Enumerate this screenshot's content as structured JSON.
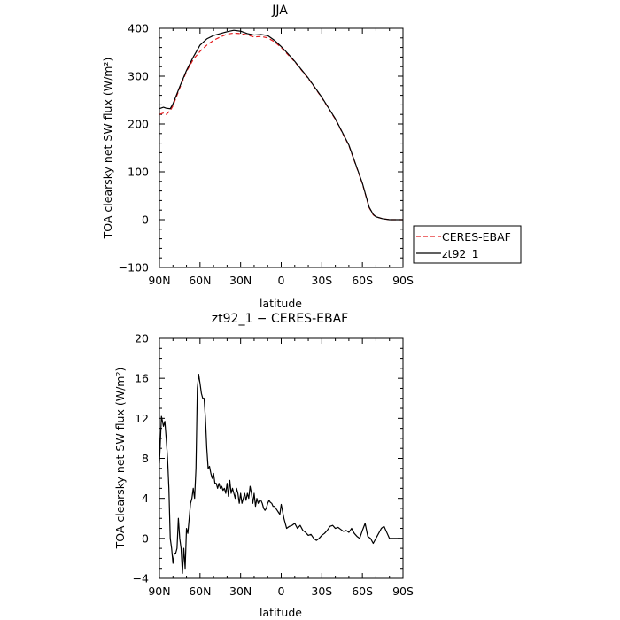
{
  "chart_data": [
    {
      "type": "line",
      "title": "JJA",
      "xlabel": "latitude",
      "ylabel": "TOA clearsky net SW flux (W/m²)",
      "xlim": [
        90,
        -90
      ],
      "ylim": [
        -100,
        400
      ],
      "x_ticks": [
        "90N",
        "60N",
        "30N",
        "0",
        "30S",
        "60S",
        "90S"
      ],
      "y_ticks": [
        "−100",
        "0",
        "100",
        "200",
        "300",
        "400"
      ],
      "legend_position": "right",
      "series": [
        {
          "name": "CERES-EBAF",
          "color": "#e41a1c",
          "style": "dashed",
          "x": [
            90,
            87,
            85,
            82,
            80,
            75,
            70,
            65,
            60,
            55,
            50,
            45,
            40,
            35,
            30,
            25,
            20,
            15,
            10,
            5,
            0,
            -5,
            -10,
            -20,
            -30,
            -40,
            -50,
            -55,
            -60,
            -63,
            -65,
            -68,
            -70,
            -75,
            -80,
            -85,
            -90
          ],
          "y": [
            220,
            223,
            220,
            228,
            238,
            275,
            310,
            335,
            352,
            365,
            375,
            382,
            388,
            390,
            389,
            386,
            382,
            383,
            380,
            372,
            360,
            345,
            330,
            295,
            255,
            210,
            155,
            115,
            75,
            45,
            25,
            10,
            6,
            2,
            0,
            0,
            0
          ]
        },
        {
          "name": "zt92_1",
          "color": "#000000",
          "style": "solid",
          "x": [
            90,
            87,
            85,
            82,
            80,
            75,
            70,
            65,
            60,
            55,
            50,
            45,
            40,
            35,
            30,
            25,
            20,
            15,
            10,
            5,
            0,
            -5,
            -10,
            -20,
            -30,
            -40,
            -50,
            -55,
            -60,
            -63,
            -65,
            -68,
            -70,
            -75,
            -80,
            -85,
            -90
          ],
          "y": [
            232,
            235,
            233,
            232,
            242,
            278,
            312,
            340,
            365,
            378,
            385,
            389,
            393,
            396,
            394,
            389,
            386,
            387,
            385,
            375,
            362,
            347,
            331,
            296,
            256,
            211,
            156,
            116,
            76,
            46,
            26,
            11,
            6,
            2,
            0,
            0,
            0
          ]
        }
      ]
    },
    {
      "type": "line",
      "title": "zt92_1 − CERES-EBAF",
      "xlabel": "latitude",
      "ylabel": "TOA clearsky net SW flux (W/m²)",
      "xlim": [
        90,
        -90
      ],
      "ylim": [
        -4,
        20
      ],
      "x_ticks": [
        "90N",
        "60N",
        "30N",
        "0",
        "30S",
        "60S",
        "90S"
      ],
      "y_ticks": [
        "−4",
        "0",
        "4",
        "8",
        "12",
        "16",
        "20"
      ],
      "series": [
        {
          "color": "#000000",
          "style": "solid",
          "x": [
            90,
            88.5,
            87,
            86,
            85,
            84,
            83,
            82,
            81,
            80,
            79,
            78,
            77,
            76,
            75,
            74,
            73,
            72,
            71,
            70,
            69,
            68,
            67,
            66,
            65,
            64,
            63,
            62,
            61,
            60,
            59,
            58,
            57,
            56,
            55,
            54,
            53,
            52,
            51,
            50,
            49,
            48,
            47,
            46,
            45,
            44,
            43,
            42,
            41,
            40,
            39,
            38,
            37,
            36,
            35,
            34,
            33,
            32,
            31,
            30,
            29,
            28,
            27,
            26,
            25,
            24,
            23,
            22,
            21,
            20,
            19,
            18,
            17,
            16,
            15,
            14,
            13,
            12,
            11,
            10,
            9,
            8,
            7,
            6,
            5,
            4,
            3,
            2,
            1,
            0,
            -2,
            -4,
            -6,
            -8,
            -10,
            -12,
            -14,
            -16,
            -18,
            -20,
            -22,
            -24,
            -26,
            -28,
            -30,
            -32,
            -34,
            -36,
            -38,
            -40,
            -42,
            -44,
            -46,
            -48,
            -50,
            -52,
            -54,
            -56,
            -58,
            -60,
            -62,
            -64,
            -66,
            -68,
            -70,
            -72,
            -74,
            -76,
            -78,
            -80,
            -82,
            -84,
            -86,
            -88,
            -90
          ],
          "y": [
            7.5,
            12.2,
            11.2,
            11.7,
            10.0,
            8.0,
            5.0,
            0.0,
            -1.0,
            -2.5,
            -1.5,
            -1.5,
            -1.0,
            2.0,
            0.0,
            -1.0,
            -3.5,
            -1.0,
            -3.0,
            1.0,
            0.5,
            2.0,
            3.5,
            4.0,
            5.0,
            4.0,
            7.0,
            15.0,
            16.4,
            15.5,
            14.5,
            14.0,
            14.0,
            12.0,
            9.0,
            7.0,
            7.2,
            6.5,
            6.0,
            6.5,
            5.5,
            5.5,
            5.0,
            5.5,
            5.0,
            5.2,
            4.8,
            5.0,
            4.5,
            5.5,
            4.2,
            5.8,
            4.5,
            5.0,
            4.5,
            4.0,
            5.0,
            4.5,
            3.5,
            4.5,
            3.5,
            4.0,
            4.5,
            3.8,
            4.5,
            4.0,
            5.2,
            4.5,
            3.5,
            4.5,
            3.2,
            4.0,
            3.5,
            3.8,
            3.8,
            3.5,
            3.0,
            2.8,
            3.0,
            3.5,
            3.8,
            3.6,
            3.5,
            3.2,
            3.2,
            3.0,
            2.8,
            2.6,
            2.4,
            3.4,
            2.0,
            1.0,
            1.2,
            1.3,
            1.5,
            1.0,
            1.3,
            0.8,
            0.6,
            0.3,
            0.4,
            0.0,
            -0.2,
            0.0,
            0.3,
            0.5,
            0.8,
            1.2,
            1.3,
            1.0,
            1.1,
            0.9,
            0.7,
            0.8,
            0.6,
            1.0,
            0.5,
            0.2,
            0.0,
            0.8,
            1.5,
            0.2,
            0.0,
            -0.5,
            0.0,
            0.5,
            1.0,
            1.2,
            0.6,
            0.0,
            0.0,
            0.0,
            0.0,
            0.0,
            0.0
          ]
        }
      ]
    }
  ]
}
